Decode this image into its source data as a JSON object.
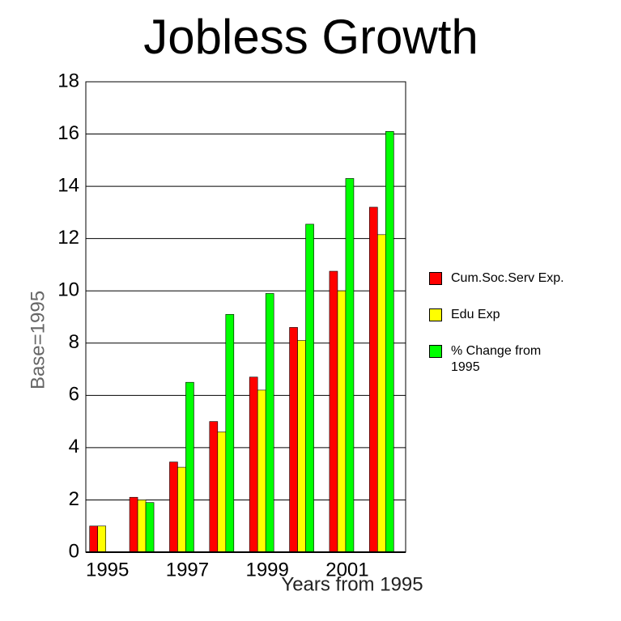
{
  "chart_data": {
    "type": "bar",
    "title": "Jobless Growth",
    "y_label": "Base=1995",
    "x_label": "Years from 1995",
    "categories": [
      "1995",
      null,
      "1997",
      null,
      "1999",
      null,
      "2001",
      null
    ],
    "series": [
      {
        "name": "Cum.Soc.Serv Exp.",
        "color": "#ff0000",
        "values": [
          1.0,
          2.1,
          3.45,
          5.0,
          6.7,
          8.6,
          10.75,
          13.2
        ]
      },
      {
        "name": "Edu Exp",
        "color": "#ffff00",
        "values": [
          1.0,
          2.0,
          3.25,
          4.6,
          6.2,
          8.1,
          10.0,
          12.15
        ]
      },
      {
        "name": "% Change from 1995",
        "color": "#00ff00",
        "values": [
          0,
          1.9,
          6.5,
          9.1,
          9.9,
          12.55,
          14.3,
          16.1
        ]
      }
    ],
    "ylim": [
      0,
      18
    ],
    "yticks": [
      0,
      2,
      4,
      6,
      8,
      10,
      12,
      14,
      16,
      18
    ],
    "grid": true
  }
}
